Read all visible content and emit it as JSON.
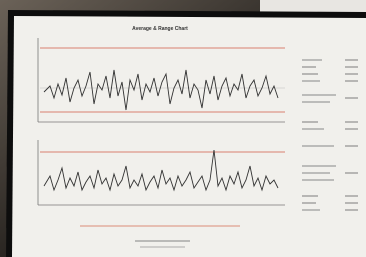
{
  "document": {
    "title": "Average & Range Chart"
  }
}
